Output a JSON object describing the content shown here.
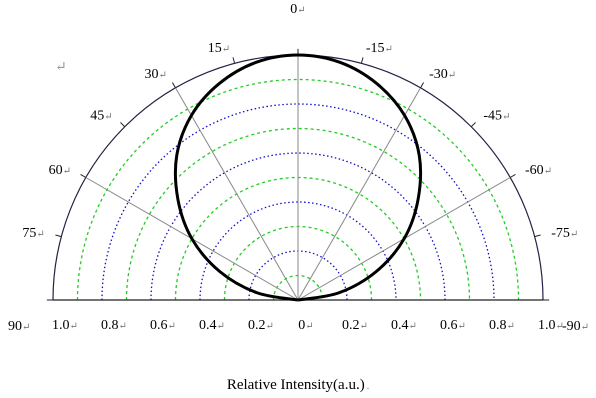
{
  "chart_data": {
    "type": "polar-line",
    "xlabel": "Relative Intensity(a.u.)",
    "xlabel_suffix": ".",
    "line_end_mark": "↵",
    "paragraph_mark": "↵",
    "angle_ticks": [
      {
        "angle": 0,
        "label": "0"
      },
      {
        "angle": 15,
        "label": "15"
      },
      {
        "angle": 30,
        "label": "30"
      },
      {
        "angle": 45,
        "label": "45"
      },
      {
        "angle": 60,
        "label": "60"
      },
      {
        "angle": 75,
        "label": "75"
      },
      {
        "angle": 90,
        "label": "90"
      },
      {
        "angle": -15,
        "label": "-15"
      },
      {
        "angle": -30,
        "label": "-30"
      },
      {
        "angle": -45,
        "label": "-45"
      },
      {
        "angle": -60,
        "label": "-60"
      },
      {
        "angle": -75,
        "label": "-75"
      },
      {
        "angle": -90,
        "label": "-90"
      }
    ],
    "radial_ticks_left": [
      "1.0",
      "0.8",
      "0.6",
      "0.4",
      "0.2"
    ],
    "radial_ticks_right": [
      "0",
      "0.2",
      "0.4",
      "0.6",
      "0.8",
      "1.0"
    ],
    "radial_range": [
      0,
      1.0
    ],
    "angle_range": [
      -90,
      90
    ],
    "grid": {
      "spokes_every_deg": 30,
      "rings_blue": [
        0.2,
        0.4,
        0.6,
        0.8,
        1.0
      ],
      "rings_green": [
        0.1,
        0.3,
        0.5,
        0.7,
        0.9
      ],
      "color_blue": "#1010c8",
      "color_green": "#22cc22",
      "color_spoke": "#888888"
    },
    "series": [
      {
        "color": "#000000",
        "angles": [
          -90,
          -80,
          -70,
          -60,
          -50,
          -40,
          -30,
          -20,
          -10,
          0,
          10,
          20,
          30,
          40,
          50,
          60,
          70,
          80,
          90
        ],
        "values": [
          0.0,
          0.17,
          0.34,
          0.5,
          0.64,
          0.77,
          0.87,
          0.94,
          0.985,
          1.0,
          0.985,
          0.94,
          0.87,
          0.77,
          0.64,
          0.5,
          0.34,
          0.17,
          0.0
        ]
      }
    ]
  }
}
